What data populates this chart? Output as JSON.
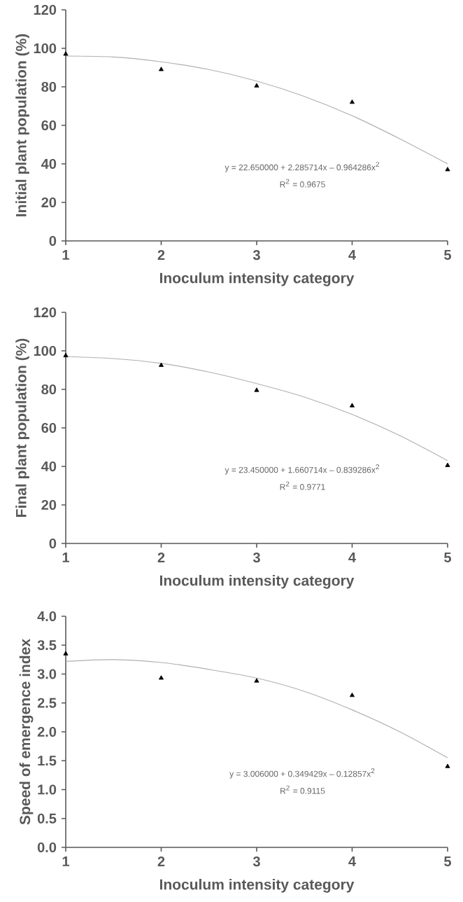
{
  "chart_data": [
    {
      "type": "scatter",
      "xlabel": "Inoculum intensity category",
      "ylabel": "Initial plant population (%)",
      "x": [
        1,
        2,
        3,
        4,
        5
      ],
      "xlim": [
        1,
        5
      ],
      "xticks": [
        1,
        2,
        3,
        4,
        5
      ],
      "ylim": [
        0,
        120
      ],
      "yticks": [
        0,
        20,
        40,
        60,
        80,
        100,
        120
      ],
      "series": [
        {
          "color": "#000000",
          "marker": "triangle",
          "values": [
            97,
            89,
            80.5,
            72,
            37
          ]
        },
        {
          "type": "line",
          "color": "#b0b0b0",
          "marker": "none",
          "x": [
            1,
            1.5,
            2,
            2.5,
            3,
            3.5,
            4,
            4.5,
            5
          ],
          "values": [
            96,
            95.5,
            93,
            89,
            83,
            75,
            65,
            53,
            40
          ]
        }
      ],
      "annotations": [
        "y = 22.650000 + 2.285714x – 0.964286x$^{2}$",
        "R$^{2}$ = 0.9675"
      ]
    },
    {
      "type": "scatter",
      "xlabel": "Inoculum intensity category",
      "ylabel": "Final plant population (%)",
      "x": [
        1,
        2,
        3,
        4,
        5
      ],
      "xlim": [
        1,
        5
      ],
      "xticks": [
        1,
        2,
        3,
        4,
        5
      ],
      "ylim": [
        0,
        120
      ],
      "yticks": [
        0,
        20,
        40,
        60,
        80,
        100,
        120
      ],
      "series": [
        {
          "color": "#000000",
          "marker": "triangle",
          "values": [
            97.5,
            92.5,
            79.5,
            71.5,
            40.5
          ]
        },
        {
          "type": "line",
          "color": "#b0b0b0",
          "marker": "none",
          "x": [
            1,
            1.5,
            2,
            2.5,
            3,
            3.5,
            4,
            4.5,
            5
          ],
          "values": [
            97,
            96,
            93.5,
            89,
            83,
            76,
            67,
            56,
            43
          ]
        }
      ],
      "annotations": [
        "y = 23.450000 + 1.660714x – 0.839286x$^{2}$",
        "R$^{2}$ = 0.9771"
      ]
    },
    {
      "type": "scatter",
      "xlabel": "Inoculum intensity category",
      "ylabel": "Speed of emergence index",
      "x": [
        1,
        2,
        3,
        4,
        5
      ],
      "xlim": [
        1,
        5
      ],
      "xticks": [
        1,
        2,
        3,
        4,
        5
      ],
      "ylim": [
        0,
        4
      ],
      "yticks": [
        {
          "value": 0,
          "label": "0.0"
        },
        {
          "value": 0.5,
          "label": "0.5"
        },
        {
          "value": 1,
          "label": "1.0"
        },
        {
          "value": 1.5,
          "label": "1.5"
        },
        {
          "value": 2,
          "label": "2.0"
        },
        {
          "value": 2.5,
          "label": "2.5"
        },
        {
          "value": 3,
          "label": "3.0"
        },
        {
          "value": 3.5,
          "label": "3.5"
        },
        {
          "value": 4,
          "label": "4.0"
        }
      ],
      "series": [
        {
          "color": "#000000",
          "marker": "triangle",
          "values": [
            3.35,
            2.93,
            2.88,
            2.63,
            1.4
          ]
        },
        {
          "type": "line",
          "color": "#b0b0b0",
          "marker": "none",
          "x": [
            1,
            1.5,
            2,
            2.5,
            3,
            3.5,
            4,
            4.5,
            5
          ],
          "values": [
            3.22,
            3.25,
            3.2,
            3.08,
            2.93,
            2.7,
            2.38,
            2.0,
            1.55
          ]
        }
      ],
      "annotations": [
        "y = 3.006000 + 0.349429x – 0.12857x$^{2}$",
        "R$^{2}$ = 0.9115"
      ]
    }
  ]
}
